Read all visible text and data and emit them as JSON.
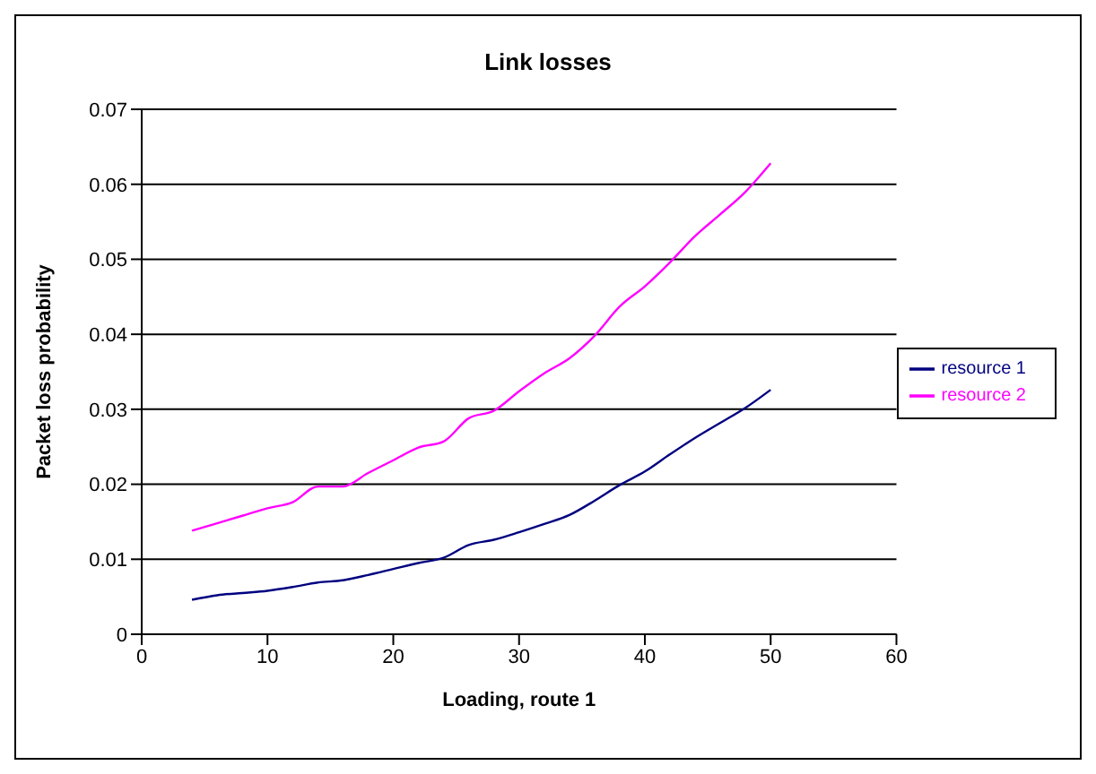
{
  "chart_data": {
    "type": "line",
    "title": "Link losses",
    "xlabel": "Loading, route 1",
    "ylabel": "Packet loss probability",
    "x": [
      4,
      6,
      8,
      10,
      12,
      14,
      16,
      18,
      20,
      22,
      24,
      26,
      28,
      30,
      32,
      34,
      36,
      38,
      40,
      42,
      44,
      46,
      48,
      50
    ],
    "series": [
      {
        "name": "resource 1",
        "color": "#000080",
        "values": [
          0.0046,
          0.0052,
          0.0055,
          0.0058,
          0.0063,
          0.0069,
          0.0072,
          0.0079,
          0.0087,
          0.0095,
          0.0102,
          0.0119,
          0.0126,
          0.0136,
          0.0147,
          0.0159,
          0.0178,
          0.0199,
          0.0217,
          0.024,
          0.0262,
          0.0282,
          0.0302,
          0.0326
        ]
      },
      {
        "name": "resource 2",
        "color": "#ff00ff",
        "values": [
          0.0138,
          0.0148,
          0.0158,
          0.0168,
          0.0176,
          0.0197,
          0.0197,
          0.0215,
          0.0232,
          0.0249,
          0.0257,
          0.0288,
          0.0298,
          0.0324,
          0.0348,
          0.0368,
          0.0398,
          0.0437,
          0.0464,
          0.0496,
          0.0531,
          0.056,
          0.059,
          0.0628
        ]
      }
    ],
    "xlim": [
      0,
      60
    ],
    "xticks": [
      0,
      10,
      20,
      30,
      40,
      50,
      60
    ],
    "ylim": [
      0,
      0.07
    ],
    "yticks": [
      0,
      0.01,
      0.02,
      0.03,
      0.04,
      0.05,
      0.06,
      0.07
    ],
    "grid": "y",
    "legend": "right",
    "marker": "none",
    "line_style": "solid"
  }
}
